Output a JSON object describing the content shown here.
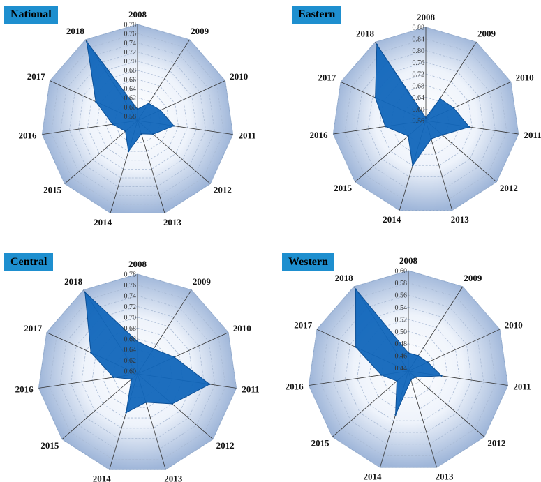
{
  "chart_data": [
    {
      "type": "radar",
      "title": "National",
      "axes": [
        "2008",
        "2009",
        "2010",
        "2011",
        "2012",
        "2013",
        "2014",
        "2015",
        "2016",
        "2017",
        "2018"
      ],
      "r_ticks": [
        "0.58",
        "0.60",
        "0.62",
        "0.64",
        "0.66",
        "0.68",
        "0.70",
        "0.72",
        "0.74",
        "0.76",
        "0.78"
      ],
      "rlim": [
        0.57,
        0.78
      ],
      "values": [
        0.595,
        0.615,
        0.625,
        0.65,
        0.615,
        0.6,
        0.64,
        0.605,
        0.625,
        0.67,
        0.775
      ]
    },
    {
      "type": "radar",
      "title": "Eastern",
      "axes": [
        "2008",
        "2009",
        "2010",
        "2011",
        "2012",
        "2013",
        "2014",
        "2015",
        "2016",
        "2017",
        "2018"
      ],
      "r_ticks": [
        "0.56",
        "0.60",
        "0.64",
        "0.68",
        "0.72",
        "0.76",
        "0.80",
        "0.84",
        "0.88"
      ],
      "rlim": [
        0.56,
        0.88
      ],
      "values": [
        0.57,
        0.65,
        0.665,
        0.71,
        0.635,
        0.625,
        0.72,
        0.64,
        0.7,
        0.75,
        0.87
      ]
    },
    {
      "type": "radar",
      "title": "Central",
      "axes": [
        "2008",
        "2009",
        "2010",
        "2011",
        "2012",
        "2013",
        "2014",
        "2015",
        "2016",
        "2017",
        "2018"
      ],
      "r_ticks": [
        "0.60",
        "0.62",
        "0.64",
        "0.66",
        "0.68",
        "0.70",
        "0.72",
        "0.74",
        "0.76",
        "0.78"
      ],
      "rlim": [
        0.595,
        0.78
      ],
      "values": [
        0.655,
        0.65,
        0.67,
        0.73,
        0.68,
        0.65,
        0.67,
        0.61,
        0.64,
        0.69,
        0.775
      ]
    },
    {
      "type": "radar",
      "title": "Western",
      "axes": [
        "2008",
        "2009",
        "2010",
        "2011",
        "2012",
        "2013",
        "2014",
        "2015",
        "2016",
        "2017",
        "2018"
      ],
      "r_ticks": [
        "0.44",
        "0.46",
        "0.48",
        "0.50",
        "0.52",
        "0.54",
        "0.56",
        "0.58",
        "0.60"
      ],
      "rlim": [
        0.435,
        0.6
      ],
      "values": [
        0.465,
        0.465,
        0.47,
        0.49,
        0.45,
        0.45,
        0.51,
        0.46,
        0.48,
        0.53,
        0.595
      ]
    }
  ],
  "colors": {
    "fill": "#1166bb",
    "badge": "#1e8fcf",
    "grid_light": "#eef3fb",
    "grid_dark": "#9fb6d9"
  }
}
